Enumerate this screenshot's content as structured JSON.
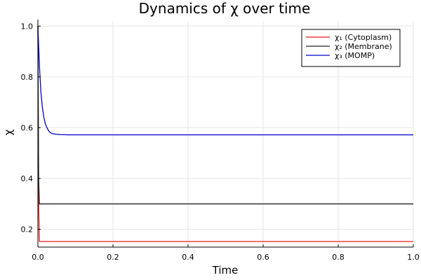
{
  "chart_data": {
    "type": "line",
    "title": "Dynamics of χ over time",
    "xlabel": "Time",
    "ylabel": "χ",
    "xlim": [
      0,
      1
    ],
    "ylim": [
      0.13,
      1.02
    ],
    "grid": true,
    "legend_position": "top-right",
    "x_ticks": [
      0.0,
      0.2,
      0.4,
      0.6,
      0.8,
      1.0
    ],
    "x_tick_labels": [
      "0.0",
      "0.2",
      "0.4",
      "0.6",
      "0.8",
      "1.0"
    ],
    "y_ticks": [
      0.2,
      0.4,
      0.6,
      0.8,
      1.0
    ],
    "y_tick_labels": [
      "0.2",
      "0.4",
      "0.6",
      "0.8",
      "1.0"
    ],
    "series": [
      {
        "name": "χ₁ (Cytoplasm)",
        "color": "#e41a1c",
        "x": [
          0,
          0.001,
          0.002,
          0.004,
          1.0
        ],
        "y": [
          1.0,
          0.6,
          0.3,
          0.152,
          0.152
        ]
      },
      {
        "name": "χ₂ (Membrane)",
        "color": "#222222",
        "x": [
          0,
          0.001,
          0.002,
          0.004,
          1.0
        ],
        "y": [
          1.0,
          0.7,
          0.4,
          0.3,
          0.3
        ]
      },
      {
        "name": "χ₃ (MOMP)",
        "color": "#0000cc",
        "x": [
          0,
          0.002,
          0.005,
          0.008,
          0.012,
          0.016,
          0.02,
          0.025,
          0.03,
          0.035,
          0.04,
          0.05,
          0.06,
          0.08,
          1.0
        ],
        "y": [
          1.0,
          0.92,
          0.82,
          0.74,
          0.68,
          0.64,
          0.615,
          0.597,
          0.585,
          0.579,
          0.576,
          0.574,
          0.573,
          0.572,
          0.572
        ]
      }
    ]
  }
}
